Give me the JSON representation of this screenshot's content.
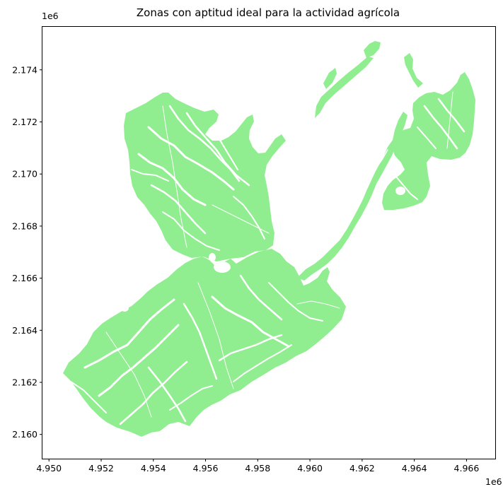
{
  "title": "Zonas con aptitud ideal para la actividad agrícola",
  "colors": {
    "land": "#90ee90",
    "gap": "#ffffff",
    "axis": "#000000"
  },
  "x_axis": {
    "offset_label": "1e6",
    "ticks": [
      4.95,
      4.952,
      4.954,
      4.956,
      4.958,
      4.96,
      4.962,
      4.964,
      4.966
    ],
    "tick_labels": [
      "4.950",
      "4.952",
      "4.954",
      "4.956",
      "4.958",
      "4.960",
      "4.962",
      "4.964",
      "4.966"
    ],
    "range": [
      4.94975,
      4.9671
    ]
  },
  "y_axis": {
    "offset_label": "1e6",
    "ticks": [
      2.16,
      2.162,
      2.164,
      2.166,
      2.168,
      2.17,
      2.172,
      2.174
    ],
    "tick_labels": [
      "2.160",
      "2.162",
      "2.164",
      "2.166",
      "2.168",
      "2.170",
      "2.172",
      "2.174"
    ],
    "range": [
      2.15907,
      2.17565
    ]
  }
}
